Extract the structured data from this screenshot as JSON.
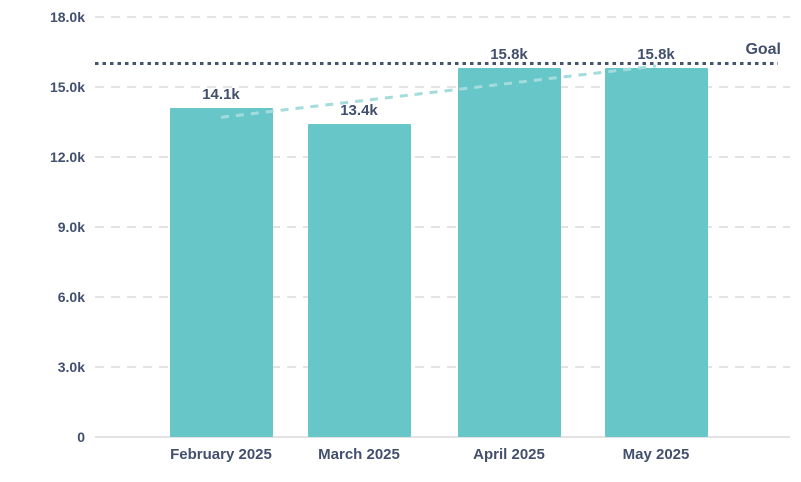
{
  "chart_data": {
    "type": "bar",
    "title": "",
    "xlabel": "",
    "ylabel": "",
    "categories": [
      "February 2025",
      "March 2025",
      "April 2025",
      "May 2025"
    ],
    "values": [
      14100,
      13400,
      15800,
      15800
    ],
    "value_labels": [
      "14.1k",
      "13.4k",
      "15.8k",
      "15.8k"
    ],
    "ylim": [
      0,
      18000
    ],
    "y_ticks": [
      {
        "value": 18000,
        "label": "18.0k"
      },
      {
        "value": 15000,
        "label": "15.0k"
      },
      {
        "value": 12000,
        "label": "12.0k"
      },
      {
        "value": 9000,
        "label": "9.0k"
      },
      {
        "value": 6000,
        "label": "6.0k"
      },
      {
        "value": 3000,
        "label": "3.0k"
      },
      {
        "value": 0,
        "label": "0"
      }
    ],
    "grid": {
      "horizontal": true,
      "style": "dashed"
    },
    "legend": "none",
    "goal_line": {
      "label": "Goal",
      "value": 16000,
      "style": "dotted"
    },
    "trend_line": {
      "style": "dashed",
      "start_value": 13700,
      "end_value": 15900
    },
    "colors": {
      "bar": "#66c6c8",
      "trend_line": "#a4dcdd",
      "goal_line": "#44536f",
      "label_text": "#42506e",
      "gridline": "#e3e3e3"
    }
  }
}
